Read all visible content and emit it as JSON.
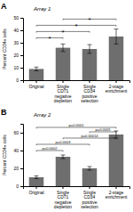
{
  "chart_data": [
    {
      "type": "bar",
      "panel_label": "A",
      "title": "Array 1",
      "categories": [
        "Original",
        "Single\nCD71\nnegative\ndepletion",
        "Single\nCD34\npositive\nselection",
        "2-stage\nenrichment"
      ],
      "values": [
        9,
        26,
        25,
        35
      ],
      "errors": [
        1.5,
        3,
        3.5,
        6
      ],
      "ylabel": "Percent CD34+ cells",
      "ylim": [
        0,
        50
      ],
      "yticks": [
        0,
        10,
        20,
        30,
        40,
        50
      ],
      "color": "#6e6e6e",
      "grid": false,
      "annotations": [
        {
          "x1": 0,
          "x2": 1,
          "y": 34,
          "label": "*"
        },
        {
          "x1": 0,
          "x2": 2,
          "y": 39,
          "label": "*"
        },
        {
          "x1": 0,
          "x2": 3,
          "y": 44,
          "label": "*"
        },
        {
          "x1": 1,
          "x2": 3,
          "y": 49,
          "label": "*"
        }
      ]
    },
    {
      "type": "bar",
      "panel_label": "B",
      "title": "Array 2",
      "categories": [
        "Original",
        "Single\nCD71\nnegative\ndepletion",
        "Single\nCD34\npositive\nselection",
        "2-stage\nenrichment"
      ],
      "values": [
        10,
        33,
        20,
        58
      ],
      "errors": [
        1.5,
        2,
        2,
        4
      ],
      "ylabel": "Percent CD34+ cells",
      "ylim": [
        0,
        70
      ],
      "yticks": [
        0,
        20,
        40,
        60
      ],
      "color": "#6e6e6e",
      "grid": false,
      "annotations": [
        {
          "x1": 0,
          "x2": 1,
          "y": 40,
          "label": "p=0.0002"
        },
        {
          "x1": 0,
          "x2": 2,
          "y": 47,
          "label": "p=0.0003"
        },
        {
          "x1": 1,
          "x2": 3,
          "y": 54,
          "label": "p=0.00014"
        },
        {
          "x1": 2,
          "x2": 3,
          "y": 61,
          "label": "p=0.0005"
        },
        {
          "x1": 0,
          "x2": 3,
          "y": 66,
          "label": "p=0.0001"
        }
      ]
    }
  ]
}
